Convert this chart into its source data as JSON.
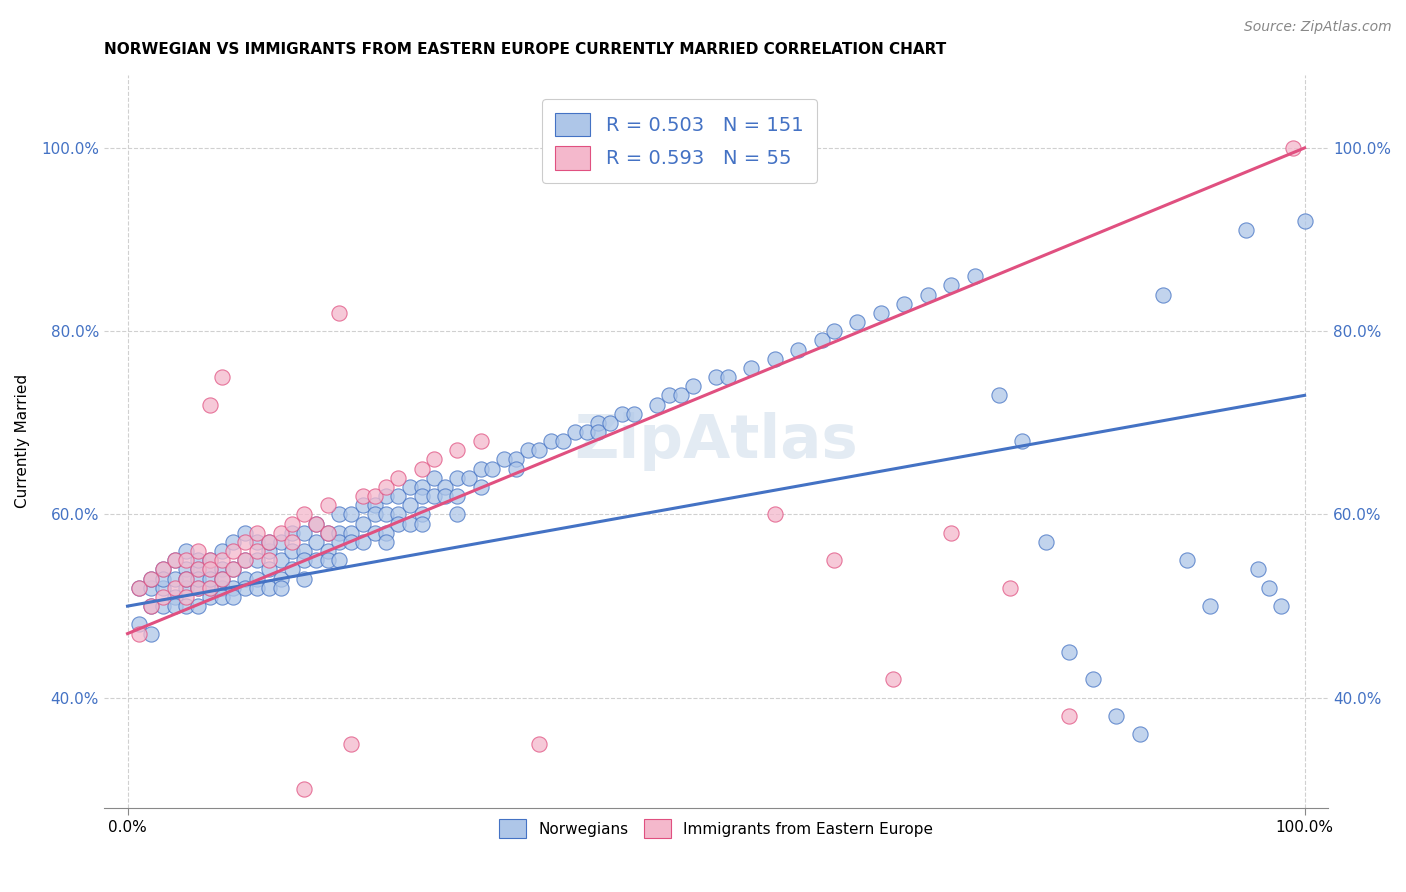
{
  "title": "NORWEGIAN VS IMMIGRANTS FROM EASTERN EUROPE CURRENTLY MARRIED CORRELATION CHART",
  "source": "Source: ZipAtlas.com",
  "ylabel": "Currently Married",
  "blue_R": 0.503,
  "blue_N": 151,
  "pink_R": 0.593,
  "pink_N": 55,
  "blue_color": "#aec6e8",
  "pink_color": "#f4b8cc",
  "blue_line_color": "#4472c4",
  "pink_line_color": "#e05080",
  "watermark": "ZipAtlas",
  "blue_trend_x": [
    0.0,
    1.0
  ],
  "blue_trend_y": [
    0.5,
    0.73
  ],
  "pink_trend_x": [
    0.0,
    1.0
  ],
  "pink_trend_y": [
    0.47,
    1.0
  ],
  "xlim": [
    -0.02,
    1.02
  ],
  "ylim": [
    0.28,
    1.08
  ],
  "yticks": [
    0.4,
    0.6,
    0.8,
    1.0
  ],
  "ytick_labels": [
    "40.0%",
    "60.0%",
    "80.0%",
    "100.0%"
  ],
  "xtick_positions": [
    0.0,
    1.0
  ],
  "xtick_labels": [
    "0.0%",
    "100.0%"
  ],
  "title_fontsize": 11,
  "axis_label_fontsize": 11,
  "legend_fontsize": 14,
  "source_fontsize": 10,
  "background_color": "#ffffff",
  "grid_color": "#d0d0d0",
  "blue_scatter_x": [
    0.01,
    0.01,
    0.02,
    0.02,
    0.02,
    0.02,
    0.03,
    0.03,
    0.03,
    0.03,
    0.04,
    0.04,
    0.04,
    0.04,
    0.05,
    0.05,
    0.05,
    0.05,
    0.05,
    0.06,
    0.06,
    0.06,
    0.06,
    0.06,
    0.07,
    0.07,
    0.07,
    0.07,
    0.07,
    0.08,
    0.08,
    0.08,
    0.08,
    0.08,
    0.09,
    0.09,
    0.09,
    0.09,
    0.1,
    0.1,
    0.1,
    0.1,
    0.11,
    0.11,
    0.11,
    0.11,
    0.12,
    0.12,
    0.12,
    0.12,
    0.13,
    0.13,
    0.13,
    0.13,
    0.14,
    0.14,
    0.14,
    0.15,
    0.15,
    0.15,
    0.15,
    0.16,
    0.16,
    0.16,
    0.17,
    0.17,
    0.17,
    0.18,
    0.18,
    0.18,
    0.18,
    0.19,
    0.19,
    0.19,
    0.2,
    0.2,
    0.2,
    0.21,
    0.21,
    0.21,
    0.22,
    0.22,
    0.22,
    0.22,
    0.23,
    0.23,
    0.23,
    0.24,
    0.24,
    0.24,
    0.25,
    0.25,
    0.25,
    0.25,
    0.26,
    0.26,
    0.27,
    0.27,
    0.28,
    0.28,
    0.28,
    0.29,
    0.3,
    0.3,
    0.31,
    0.32,
    0.33,
    0.33,
    0.34,
    0.35,
    0.36,
    0.37,
    0.38,
    0.39,
    0.4,
    0.4,
    0.41,
    0.42,
    0.43,
    0.45,
    0.46,
    0.47,
    0.48,
    0.5,
    0.51,
    0.53,
    0.55,
    0.57,
    0.59,
    0.6,
    0.62,
    0.64,
    0.66,
    0.68,
    0.7,
    0.72,
    0.74,
    0.76,
    0.78,
    0.8,
    0.82,
    0.84,
    0.86,
    0.88,
    0.9,
    0.92,
    0.95,
    0.96,
    0.97,
    0.98,
    1.0
  ],
  "blue_scatter_y": [
    0.52,
    0.48,
    0.52,
    0.53,
    0.5,
    0.47,
    0.54,
    0.52,
    0.5,
    0.53,
    0.53,
    0.51,
    0.55,
    0.5,
    0.54,
    0.52,
    0.5,
    0.53,
    0.56,
    0.54,
    0.52,
    0.5,
    0.53,
    0.55,
    0.54,
    0.52,
    0.51,
    0.53,
    0.55,
    0.54,
    0.52,
    0.51,
    0.53,
    0.56,
    0.54,
    0.52,
    0.51,
    0.57,
    0.55,
    0.53,
    0.52,
    0.58,
    0.55,
    0.53,
    0.52,
    0.57,
    0.56,
    0.54,
    0.52,
    0.57,
    0.57,
    0.55,
    0.53,
    0.52,
    0.58,
    0.56,
    0.54,
    0.58,
    0.56,
    0.55,
    0.53,
    0.59,
    0.57,
    0.55,
    0.58,
    0.56,
    0.55,
    0.6,
    0.58,
    0.57,
    0.55,
    0.6,
    0.58,
    0.57,
    0.61,
    0.59,
    0.57,
    0.61,
    0.6,
    0.58,
    0.62,
    0.6,
    0.58,
    0.57,
    0.62,
    0.6,
    0.59,
    0.63,
    0.61,
    0.59,
    0.63,
    0.62,
    0.6,
    0.59,
    0.64,
    0.62,
    0.63,
    0.62,
    0.64,
    0.62,
    0.6,
    0.64,
    0.65,
    0.63,
    0.65,
    0.66,
    0.66,
    0.65,
    0.67,
    0.67,
    0.68,
    0.68,
    0.69,
    0.69,
    0.7,
    0.69,
    0.7,
    0.71,
    0.71,
    0.72,
    0.73,
    0.73,
    0.74,
    0.75,
    0.75,
    0.76,
    0.77,
    0.78,
    0.79,
    0.8,
    0.81,
    0.82,
    0.83,
    0.84,
    0.85,
    0.86,
    0.73,
    0.68,
    0.57,
    0.45,
    0.42,
    0.38,
    0.36,
    0.84,
    0.55,
    0.5,
    0.91,
    0.54,
    0.52,
    0.5,
    0.92
  ],
  "pink_scatter_x": [
    0.01,
    0.01,
    0.02,
    0.02,
    0.03,
    0.03,
    0.04,
    0.04,
    0.05,
    0.05,
    0.05,
    0.06,
    0.06,
    0.06,
    0.07,
    0.07,
    0.07,
    0.07,
    0.08,
    0.08,
    0.08,
    0.09,
    0.09,
    0.1,
    0.1,
    0.11,
    0.11,
    0.12,
    0.12,
    0.13,
    0.14,
    0.14,
    0.15,
    0.15,
    0.16,
    0.17,
    0.17,
    0.18,
    0.19,
    0.2,
    0.21,
    0.22,
    0.23,
    0.25,
    0.26,
    0.28,
    0.3,
    0.35,
    0.55,
    0.6,
    0.65,
    0.7,
    0.75,
    0.8,
    0.99
  ],
  "pink_scatter_y": [
    0.52,
    0.47,
    0.53,
    0.5,
    0.54,
    0.51,
    0.55,
    0.52,
    0.55,
    0.53,
    0.51,
    0.56,
    0.54,
    0.52,
    0.55,
    0.54,
    0.72,
    0.52,
    0.55,
    0.53,
    0.75,
    0.56,
    0.54,
    0.57,
    0.55,
    0.58,
    0.56,
    0.57,
    0.55,
    0.58,
    0.59,
    0.57,
    0.3,
    0.6,
    0.59,
    0.61,
    0.58,
    0.82,
    0.35,
    0.62,
    0.62,
    0.63,
    0.64,
    0.65,
    0.66,
    0.67,
    0.68,
    0.35,
    0.6,
    0.55,
    0.42,
    0.58,
    0.52,
    0.38,
    1.0
  ]
}
